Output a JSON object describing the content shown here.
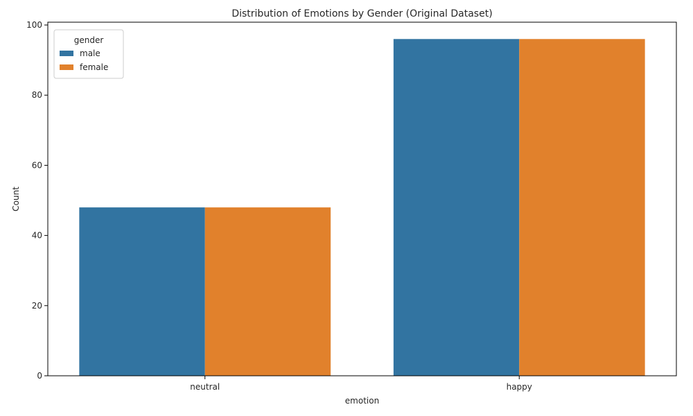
{
  "chart_data": {
    "type": "bar",
    "title": "Distribution of Emotions by Gender (Original Dataset)",
    "xlabel": "emotion",
    "ylabel": "Count",
    "categories": [
      "neutral",
      "happy"
    ],
    "series": [
      {
        "name": "male",
        "values": [
          48,
          96
        ],
        "color": "#3274a1"
      },
      {
        "name": "female",
        "values": [
          48,
          96
        ],
        "color": "#e1812c"
      }
    ],
    "ylim": [
      0,
      100.8
    ],
    "yticks": [
      0,
      20,
      40,
      60,
      80,
      100
    ],
    "legend": {
      "title": "gender",
      "position": "top-left"
    },
    "grid": false
  }
}
